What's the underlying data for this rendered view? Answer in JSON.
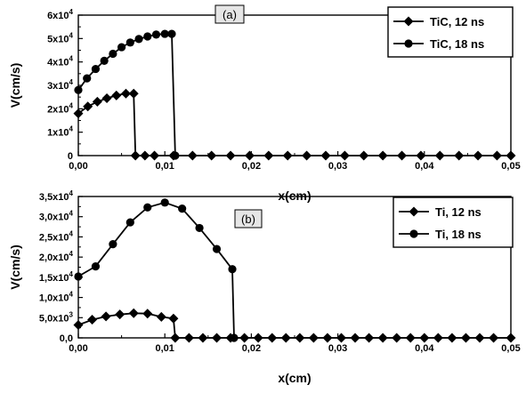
{
  "chart_data": [
    {
      "type": "line",
      "panel_label": "(a)",
      "xlabel": "x(cm)",
      "ylabel": "V(cm/s)",
      "xlim": [
        0,
        0.05
      ],
      "ylim": [
        0,
        60000
      ],
      "x_ticks": [
        0,
        0.01,
        0.02,
        0.03,
        0.04,
        0.05
      ],
      "x_tick_labels": [
        "0,00",
        "0,01",
        "0,02",
        "0,03",
        "0,04",
        "0,05"
      ],
      "y_ticks": [
        0,
        10000,
        20000,
        30000,
        40000,
        50000,
        60000
      ],
      "y_tick_mantissa": [
        "0",
        "1x10",
        "2x10",
        "3x10",
        "4x10",
        "5x10",
        "6x10"
      ],
      "y_tick_exponent": [
        "",
        "4",
        "4",
        "4",
        "4",
        "4",
        "4"
      ],
      "legend_position": "top-right",
      "grid": false,
      "series": [
        {
          "name": "TiC, 12 ns",
          "marker": "diamond",
          "x": [
            0.0,
            0.0011,
            0.0022,
            0.0033,
            0.0044,
            0.0055,
            0.0064,
            0.0066,
            0.0077,
            0.0088,
            0.011,
            0.0132,
            0.0154,
            0.0176,
            0.0198,
            0.022,
            0.0242,
            0.0264,
            0.0286,
            0.0308,
            0.033,
            0.0352,
            0.0374,
            0.0396,
            0.0418,
            0.044,
            0.0462,
            0.0484,
            0.05
          ],
          "y": [
            18000,
            21000,
            23000,
            24500,
            25700,
            26500,
            26500,
            0,
            0,
            0,
            0,
            0,
            0,
            0,
            0,
            0,
            0,
            0,
            0,
            0,
            0,
            0,
            0,
            0,
            0,
            0,
            0,
            0,
            0
          ]
        },
        {
          "name": "TiC, 18 ns",
          "marker": "circle",
          "x": [
            0.0,
            0.001,
            0.002,
            0.003,
            0.004,
            0.005,
            0.006,
            0.007,
            0.008,
            0.009,
            0.01,
            0.0108,
            0.0112
          ],
          "y": [
            28000,
            33000,
            37000,
            40500,
            43500,
            46300,
            48300,
            49800,
            50900,
            51700,
            52000,
            52000,
            0
          ]
        }
      ]
    },
    {
      "type": "line",
      "panel_label": "(b)",
      "xlabel": "x(cm)",
      "ylabel": "V(cm/s)",
      "xlim": [
        0,
        0.05
      ],
      "ylim": [
        0,
        35000
      ],
      "x_ticks": [
        0,
        0.01,
        0.02,
        0.03,
        0.04,
        0.05
      ],
      "x_tick_labels": [
        "0,00",
        "0,01",
        "0,02",
        "0,03",
        "0,04",
        "0,05"
      ],
      "y_ticks": [
        0,
        5000,
        10000,
        15000,
        20000,
        25000,
        30000,
        35000
      ],
      "y_tick_mantissa": [
        "0,0",
        "5,0x10",
        "1,0x10",
        "1,5x10",
        "2,0x10",
        "2,5x10",
        "3,0x10",
        "3,5x10"
      ],
      "y_tick_exponent": [
        "",
        "3",
        "4",
        "4",
        "4",
        "4",
        "4",
        "4"
      ],
      "legend_position": "top-right",
      "grid": false,
      "series": [
        {
          "name": "Ti, 12 ns",
          "marker": "diamond",
          "x": [
            0.0,
            0.0016,
            0.0032,
            0.0048,
            0.0064,
            0.008,
            0.0096,
            0.011,
            0.0112,
            0.0128,
            0.0144,
            0.016,
            0.0176,
            0.0192,
            0.0208,
            0.0224,
            0.024,
            0.0256,
            0.0272,
            0.0288,
            0.0304,
            0.032,
            0.0336,
            0.0352,
            0.0368,
            0.0384,
            0.04,
            0.0416,
            0.0432,
            0.0448,
            0.0464,
            0.048,
            0.05
          ],
          "y": [
            3200,
            4500,
            5300,
            5800,
            6100,
            6000,
            5200,
            4800,
            0,
            0,
            0,
            0,
            0,
            0,
            0,
            0,
            0,
            0,
            0,
            0,
            0,
            0,
            0,
            0,
            0,
            0,
            0,
            0,
            0,
            0,
            0,
            0,
            0
          ]
        },
        {
          "name": "Ti, 18 ns",
          "marker": "circle",
          "x": [
            0.0,
            0.002,
            0.004,
            0.006,
            0.008,
            0.01,
            0.012,
            0.014,
            0.016,
            0.0178,
            0.018
          ],
          "y": [
            15200,
            17700,
            23200,
            28600,
            32300,
            33500,
            32000,
            27200,
            22000,
            17000,
            0
          ]
        }
      ]
    }
  ]
}
